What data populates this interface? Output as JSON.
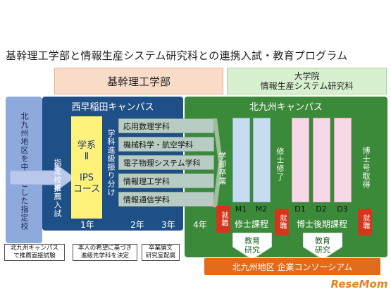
{
  "title": "基幹理工学部と情報生産システム研究科との連携入試・教育プログラム",
  "headers": {
    "kikan": "基幹理工学部",
    "ips_line1": "大学院",
    "ips_line2": "情報生産システム研究科"
  },
  "left_region": "北九州地区を中心とした指定校",
  "west_campus": {
    "title": "西早稲田キャンパス",
    "shitei": "指定校推薦入試",
    "box_line1": "学系",
    "box_line2": "Ⅱ",
    "box_line3": "IPS",
    "box_line4": "コース",
    "shinkyu": "学科進級振り分け",
    "departments": [
      "応用数理学科",
      "機械科学・航空学科",
      "電子物理システム学科",
      "情報理工学科",
      "情報通信学科"
    ],
    "years": [
      "1年",
      "2年",
      "3年"
    ]
  },
  "kyushu_campus": {
    "title": "北九州キャンパス",
    "gakubu_sotsugyo": "学部卒業",
    "shushi_shuryo": "修士修了",
    "hakase_shutoku": "博士号取得",
    "year4": "4年",
    "master_cols": [
      "M1",
      "M2"
    ],
    "master_label": "修士課程",
    "doctor_cols": [
      "D1",
      "D2",
      "D3"
    ],
    "doctor_label": "博士後期課程",
    "shushoku": "就職",
    "kyoiku_line1": "教育",
    "kyoiku_line2": "研究"
  },
  "consortium": "北九州地区 企業コンソーシアム",
  "notes": {
    "n1_line1": "北九州キャンパス",
    "n1_line2": "で推薦面接試験",
    "n2_line1": "本人の希望に基づき",
    "n2_line2": "進級先学科を決定",
    "n3_line1": "卒業論文",
    "n3_line2": "研究室配属"
  },
  "logo": "ReseMom",
  "colors": {
    "west_blue": "#1e4f86",
    "kyushu_green": "#3b8a3a",
    "consortium_orange": "#e36a1a",
    "red_label": "#d4361c",
    "ips_yellow": "#fff27a"
  }
}
